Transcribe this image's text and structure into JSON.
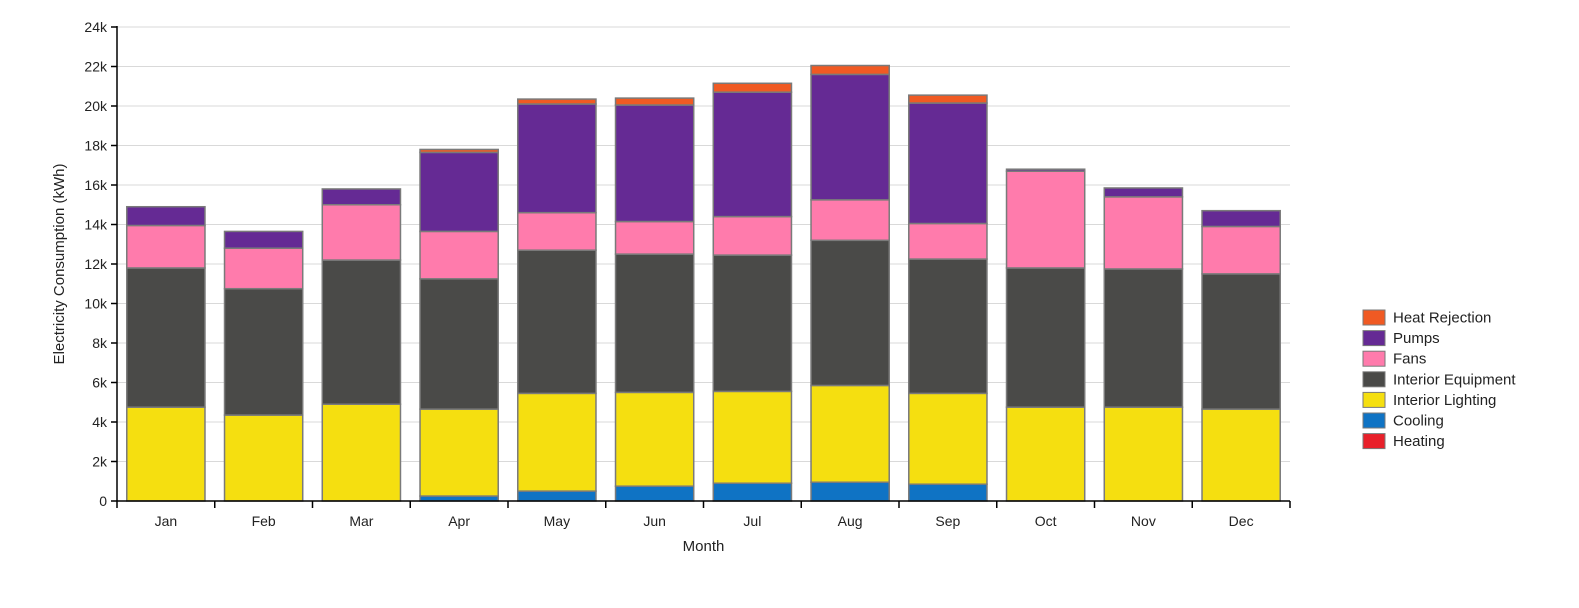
{
  "chart_data": {
    "type": "bar",
    "stacked": true,
    "xlabel": "Month",
    "ylabel": "Electricity Consumption (kWh)",
    "ylim": [
      0,
      24000
    ],
    "yticks": [
      0,
      2000,
      4000,
      6000,
      8000,
      10000,
      12000,
      14000,
      16000,
      18000,
      20000,
      22000,
      24000
    ],
    "ytick_labels": [
      "0",
      "2k",
      "4k",
      "6k",
      "8k",
      "10k",
      "12k",
      "14k",
      "16k",
      "18k",
      "20k",
      "22k",
      "24k"
    ],
    "grid": true,
    "legend_position": "right",
    "categories": [
      "Jan",
      "Feb",
      "Mar",
      "Apr",
      "May",
      "Jun",
      "Jul",
      "Aug",
      "Sep",
      "Oct",
      "Nov",
      "Dec"
    ],
    "series": [
      {
        "name": "Heating",
        "color": "#e8202a",
        "values": [
          0,
          0,
          0,
          0,
          0,
          0,
          0,
          0,
          0,
          0,
          0,
          0
        ]
      },
      {
        "name": "Cooling",
        "color": "#0f73c4",
        "values": [
          0,
          0,
          0,
          250,
          500,
          750,
          900,
          950,
          850,
          0,
          0,
          0
        ]
      },
      {
        "name": "Interior Lighting",
        "color": "#f5df10",
        "values": [
          4750,
          4350,
          4900,
          4400,
          4950,
          4750,
          4650,
          4900,
          4600,
          4750,
          4750,
          4650
        ]
      },
      {
        "name": "Interior Equipment",
        "color": "#4a4a48",
        "values": [
          7050,
          6400,
          7300,
          6600,
          7250,
          7000,
          6900,
          7350,
          6800,
          7050,
          7000,
          6850
        ]
      },
      {
        "name": "Fans",
        "color": "#ff7bac",
        "values": [
          2150,
          2050,
          2800,
          2400,
          1900,
          1650,
          1950,
          2050,
          1800,
          4900,
          3650,
          2400
        ]
      },
      {
        "name": "Pumps",
        "color": "#652a94",
        "values": [
          950,
          850,
          800,
          4000,
          5500,
          5900,
          6300,
          6350,
          6100,
          100,
          450,
          800
        ]
      },
      {
        "name": "Heat Rejection",
        "color": "#f05a23",
        "values": [
          0,
          0,
          0,
          150,
          250,
          350,
          450,
          450,
          400,
          0,
          0,
          0
        ]
      }
    ],
    "legend_order": [
      "Heat Rejection",
      "Pumps",
      "Fans",
      "Interior Equipment",
      "Interior Lighting",
      "Cooling",
      "Heating"
    ]
  }
}
